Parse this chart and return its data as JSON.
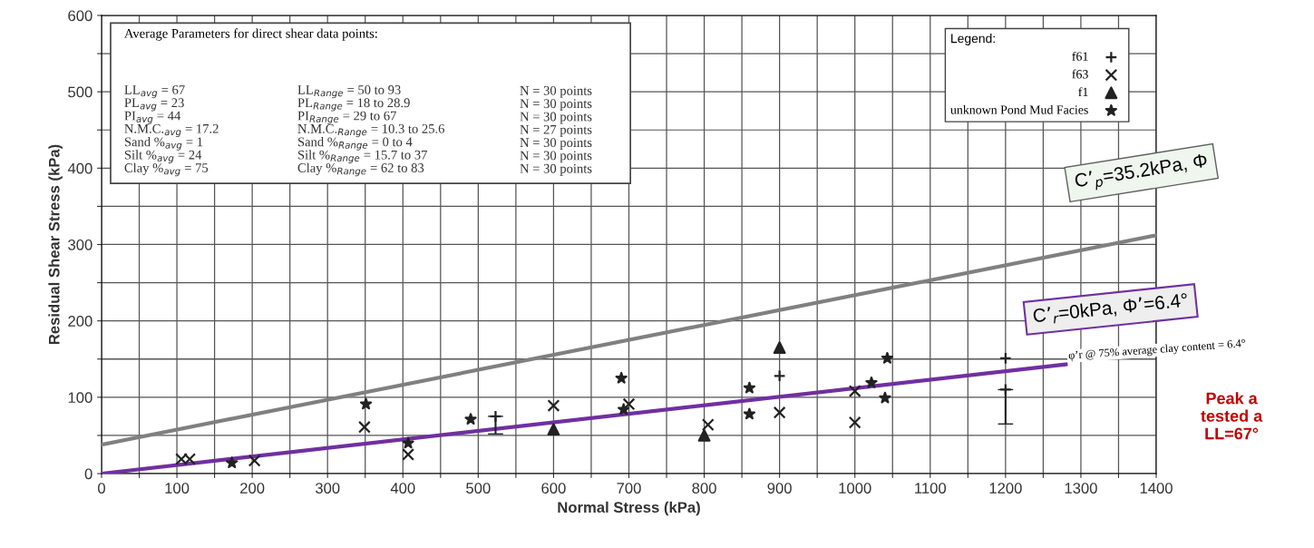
{
  "chart_data": {
    "type": "scatter",
    "xlabel": "Normal Stress (kPa)",
    "ylabel": "Residual Shear Stress (kPa)",
    "xlim": [
      0,
      1400
    ],
    "ylim": [
      0,
      600
    ],
    "xticks": [
      0,
      {
        "value": 50,
        "label": null
      },
      100,
      {
        "value": 150,
        "label": null
      },
      200,
      {
        "value": 250,
        "label": null
      },
      300,
      {
        "value": 350,
        "label": null
      },
      400,
      {
        "value": 450,
        "label": null
      },
      500,
      {
        "value": 550,
        "label": null
      },
      600,
      {
        "value": 650,
        "label": null
      },
      700,
      {
        "value": 750,
        "label": null
      },
      800,
      {
        "value": 850,
        "label": null
      },
      900,
      {
        "value": 950,
        "label": null
      },
      1000,
      {
        "value": 1050,
        "label": null
      },
      1100,
      {
        "value": 1150,
        "label": null
      },
      1200,
      {
        "value": 1250,
        "label": null
      },
      1300,
      {
        "value": 1350,
        "label": null
      },
      1400
    ],
    "yticks": [
      0,
      {
        "value": 50,
        "label": null
      },
      100,
      {
        "value": 150,
        "label": null
      },
      200,
      {
        "value": 250,
        "label": null
      },
      300,
      {
        "value": 350,
        "label": null
      },
      400,
      {
        "value": 450,
        "label": null
      },
      500,
      {
        "value": 550,
        "label": null
      },
      600
    ],
    "grid": true,
    "legend": "top right",
    "legend_title": "Legend:",
    "series": [
      {
        "name": "f61",
        "marker": "plus",
        "color": "#222222",
        "x": [
          1200
        ],
        "values": [
          151
        ]
      },
      {
        "name": "f63",
        "marker": "x",
        "color": "#222222",
        "x": [
          106,
          117,
          203,
          349,
          407,
          600,
          700,
          805,
          900,
          1000,
          1000
        ],
        "values": [
          19,
          19,
          17,
          61,
          25,
          89,
          91,
          64,
          80,
          108,
          67
        ]
      },
      {
        "name": "f1",
        "marker": "triangle",
        "color": "#222222",
        "x": [
          600,
          800,
          900
        ],
        "values": [
          58,
          50,
          165
        ]
      },
      {
        "name": "unknown Pond Mud Facies",
        "marker": "star",
        "color": "#222222",
        "x": [
          173,
          351,
          407,
          490,
          690,
          693,
          860,
          860,
          1022,
          1043,
          1040
        ],
        "values": [
          14,
          91,
          40,
          71,
          125,
          84,
          112,
          78,
          119,
          151,
          99
        ]
      },
      {
        "type": "scatter",
        "marker": "plus",
        "color": "#222222",
        "x": [
          523,
          1200,
          900
        ],
        "values": [
          75,
          110,
          128
        ],
        "errors": [
          [
            52,
            75
          ],
          [
            65,
            110
          ],
          null
        ]
      },
      {
        "type": "line",
        "color": "#808080",
        "x": [
          0,
          1400
        ],
        "values": [
          38,
          312
        ]
      },
      {
        "type": "line",
        "color": "#7030a0",
        "x": [
          0,
          1280
        ],
        "values": [
          0,
          143
        ]
      }
    ],
    "annotations": [
      "Average Parameters for direct shear data points:",
      "LL$_{avg}$ = 67",
      "PL$_{avg}$ = 23",
      "PI$_{avg}$ = 44",
      "N.M.C.$_{avg}$ = 17.2",
      "Sand %$_{avg}$ = 1",
      "Silt %$_{avg}$ = 24",
      "Clay %$_{avg}$ = 75",
      "LL$_{Range}$ = 50 to 93",
      "PL$_{Range}$ = 18 to 28.9",
      "PI$_{Range}$ = 29 to 67",
      "N.M.C.$_{Range}$ = 10.3 to 25.6",
      "Sand %$_{Range}$ = 0 to 4",
      "Silt %$_{Range}$ = 15.7 to 37",
      "Clay %$_{Range}$ = 62 to 83",
      "N = 30 points",
      "N = 30 points",
      "N = 30 points",
      "N = 27 points",
      "N = 30 points",
      "N = 30 points",
      "N = 30 points",
      "C’$_{p}$=35.2kPa, Φ",
      "C’$_{r}$=0kPa, Φ’=6.4°",
      "φ’r @ 75% average clay content = 6.4°",
      "Peak a\ntested a\nLL=67°"
    ]
  }
}
